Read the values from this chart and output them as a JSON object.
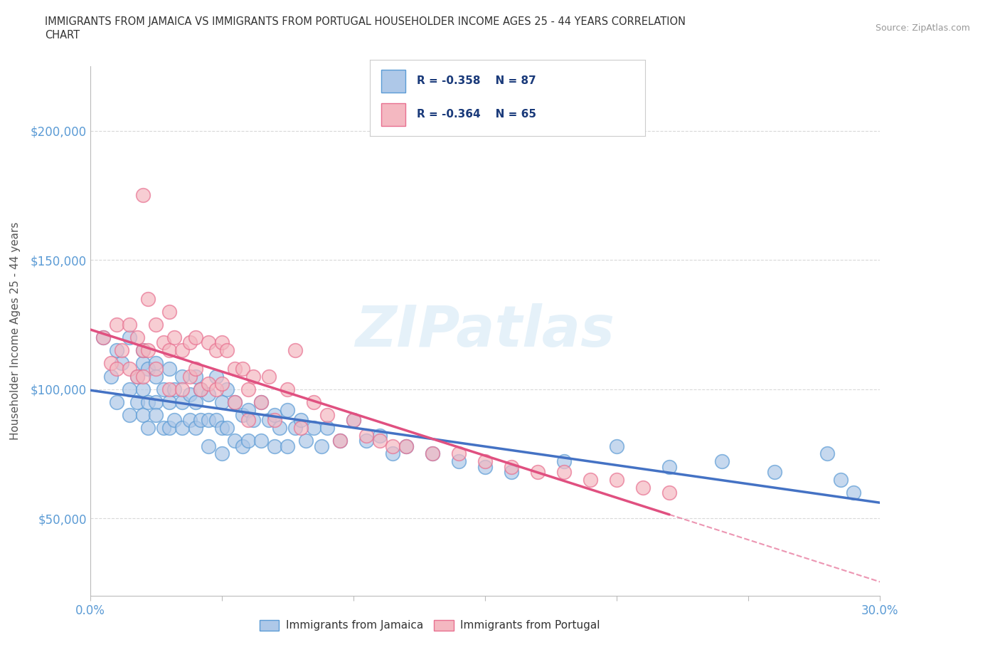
{
  "title_line1": "IMMIGRANTS FROM JAMAICA VS IMMIGRANTS FROM PORTUGAL HOUSEHOLDER INCOME AGES 25 - 44 YEARS CORRELATION",
  "title_line2": "CHART",
  "source_text": "Source: ZipAtlas.com",
  "ylabel": "Householder Income Ages 25 - 44 years",
  "xlim": [
    0.0,
    0.3
  ],
  "ylim": [
    20000,
    225000
  ],
  "xticks": [
    0.0,
    0.05,
    0.1,
    0.15,
    0.2,
    0.25,
    0.3
  ],
  "xticklabels": [
    "0.0%",
    "",
    "",
    "",
    "",
    "",
    "30.0%"
  ],
  "ytick_values": [
    50000,
    100000,
    150000,
    200000
  ],
  "ytick_labels": [
    "$50,000",
    "$100,000",
    "$150,000",
    "$200,000"
  ],
  "jamaica_color": "#aec8e8",
  "jamaica_edge": "#5b9bd5",
  "portugal_color": "#f4b8c1",
  "portugal_edge": "#e87090",
  "jamaica_line_color": "#4472c4",
  "portugal_line_color": "#e05080",
  "watermark": "ZIPatlas",
  "jamaica_R": -0.358,
  "jamaica_N": 87,
  "portugal_R": -0.364,
  "portugal_N": 65,
  "jamaica_scatter_x": [
    0.005,
    0.008,
    0.01,
    0.01,
    0.012,
    0.015,
    0.015,
    0.015,
    0.018,
    0.018,
    0.02,
    0.02,
    0.02,
    0.02,
    0.022,
    0.022,
    0.022,
    0.025,
    0.025,
    0.025,
    0.025,
    0.028,
    0.028,
    0.03,
    0.03,
    0.03,
    0.032,
    0.032,
    0.035,
    0.035,
    0.035,
    0.038,
    0.038,
    0.04,
    0.04,
    0.04,
    0.042,
    0.042,
    0.045,
    0.045,
    0.045,
    0.048,
    0.048,
    0.05,
    0.05,
    0.05,
    0.052,
    0.052,
    0.055,
    0.055,
    0.058,
    0.058,
    0.06,
    0.06,
    0.062,
    0.065,
    0.065,
    0.068,
    0.07,
    0.07,
    0.072,
    0.075,
    0.075,
    0.078,
    0.08,
    0.082,
    0.085,
    0.088,
    0.09,
    0.095,
    0.1,
    0.105,
    0.11,
    0.115,
    0.12,
    0.13,
    0.14,
    0.15,
    0.16,
    0.18,
    0.2,
    0.22,
    0.24,
    0.26,
    0.28,
    0.285,
    0.29
  ],
  "jamaica_scatter_y": [
    120000,
    105000,
    115000,
    95000,
    110000,
    120000,
    100000,
    90000,
    105000,
    95000,
    110000,
    100000,
    90000,
    115000,
    108000,
    95000,
    85000,
    110000,
    95000,
    105000,
    90000,
    100000,
    85000,
    108000,
    95000,
    85000,
    100000,
    88000,
    105000,
    95000,
    85000,
    98000,
    88000,
    105000,
    95000,
    85000,
    100000,
    88000,
    98000,
    88000,
    78000,
    105000,
    88000,
    95000,
    85000,
    75000,
    100000,
    85000,
    95000,
    80000,
    90000,
    78000,
    92000,
    80000,
    88000,
    95000,
    80000,
    88000,
    90000,
    78000,
    85000,
    92000,
    78000,
    85000,
    88000,
    80000,
    85000,
    78000,
    85000,
    80000,
    88000,
    80000,
    82000,
    75000,
    78000,
    75000,
    72000,
    70000,
    68000,
    72000,
    78000,
    70000,
    72000,
    68000,
    75000,
    65000,
    60000
  ],
  "portugal_scatter_x": [
    0.005,
    0.008,
    0.01,
    0.01,
    0.012,
    0.015,
    0.015,
    0.018,
    0.018,
    0.02,
    0.02,
    0.02,
    0.022,
    0.022,
    0.025,
    0.025,
    0.028,
    0.03,
    0.03,
    0.03,
    0.032,
    0.035,
    0.035,
    0.038,
    0.038,
    0.04,
    0.04,
    0.042,
    0.045,
    0.045,
    0.048,
    0.048,
    0.05,
    0.05,
    0.052,
    0.055,
    0.055,
    0.058,
    0.06,
    0.06,
    0.062,
    0.065,
    0.068,
    0.07,
    0.075,
    0.078,
    0.08,
    0.085,
    0.09,
    0.095,
    0.1,
    0.105,
    0.11,
    0.115,
    0.12,
    0.13,
    0.14,
    0.15,
    0.16,
    0.17,
    0.18,
    0.19,
    0.2,
    0.21,
    0.22
  ],
  "portugal_scatter_y": [
    120000,
    110000,
    125000,
    108000,
    115000,
    125000,
    108000,
    120000,
    105000,
    115000,
    175000,
    105000,
    115000,
    135000,
    125000,
    108000,
    118000,
    130000,
    115000,
    100000,
    120000,
    115000,
    100000,
    118000,
    105000,
    120000,
    108000,
    100000,
    118000,
    102000,
    115000,
    100000,
    118000,
    102000,
    115000,
    108000,
    95000,
    108000,
    100000,
    88000,
    105000,
    95000,
    105000,
    88000,
    100000,
    115000,
    85000,
    95000,
    90000,
    80000,
    88000,
    82000,
    80000,
    78000,
    78000,
    75000,
    75000,
    72000,
    70000,
    68000,
    68000,
    65000,
    65000,
    62000,
    60000
  ],
  "background_color": "#ffffff",
  "grid_color": "#d0d0d0"
}
